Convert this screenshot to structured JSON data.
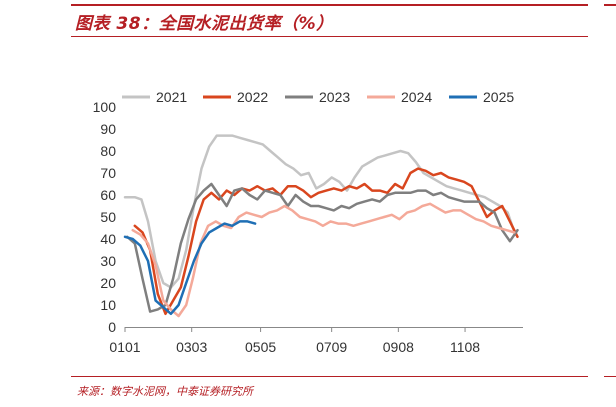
{
  "header": {
    "title": "图表 38：全国水泥出货率（%）"
  },
  "footer": {
    "source": "来源：数字水泥网，中泰证券研究所"
  },
  "colors": {
    "accent": "#b51f24"
  },
  "chart_data": {
    "type": "line",
    "title": "",
    "xlabel": "",
    "ylabel": "",
    "ylim": [
      0,
      100
    ],
    "yticks": [
      0,
      10,
      20,
      30,
      40,
      50,
      60,
      70,
      80,
      90,
      100
    ],
    "grid": false,
    "legend_position": "top",
    "x_start": "0101",
    "x_end": "1231",
    "x_ticks": [
      "0101",
      "0303",
      "0505",
      "0709",
      "0908",
      "1108"
    ],
    "series": [
      {
        "name": "2021",
        "color": "#c4c4c4",
        "points": [
          [
            "0101",
            59
          ],
          [
            "0110",
            59
          ],
          [
            "0116",
            58
          ],
          [
            "0122",
            48
          ],
          [
            "0129",
            30
          ],
          [
            "0205",
            20
          ],
          [
            "0212",
            18
          ],
          [
            "0219",
            22
          ],
          [
            "0226",
            35
          ],
          [
            "0305",
            55
          ],
          [
            "0312",
            72
          ],
          [
            "0319",
            82
          ],
          [
            "0326",
            87
          ],
          [
            "0402",
            87
          ],
          [
            "0409",
            87
          ],
          [
            "0416",
            86
          ],
          [
            "0423",
            85
          ],
          [
            "0430",
            84
          ],
          [
            "0507",
            83
          ],
          [
            "0514",
            80
          ],
          [
            "0521",
            77
          ],
          [
            "0528",
            74
          ],
          [
            "0604",
            72
          ],
          [
            "0611",
            69
          ],
          [
            "0618",
            70
          ],
          [
            "0625",
            63
          ],
          [
            "0702",
            65
          ],
          [
            "0709",
            68
          ],
          [
            "0716",
            66
          ],
          [
            "0723",
            62
          ],
          [
            "0730",
            68
          ],
          [
            "0806",
            73
          ],
          [
            "0813",
            75
          ],
          [
            "0820",
            77
          ],
          [
            "0827",
            78
          ],
          [
            "0903",
            79
          ],
          [
            "0910",
            80
          ],
          [
            "0917",
            79
          ],
          [
            "0924",
            75
          ],
          [
            "1001",
            70
          ],
          [
            "1008",
            68
          ],
          [
            "1015",
            66
          ],
          [
            "1022",
            64
          ],
          [
            "1029",
            63
          ],
          [
            "1105",
            62
          ],
          [
            "1112",
            61
          ],
          [
            "1119",
            60
          ],
          [
            "1126",
            59
          ],
          [
            "1203",
            57
          ],
          [
            "1210",
            55
          ],
          [
            "1217",
            52
          ],
          [
            "1224",
            42
          ]
        ]
      },
      {
        "name": "2022",
        "color": "#d9461e",
        "points": [
          [
            "0110",
            46
          ],
          [
            "0117",
            43
          ],
          [
            "0124",
            35
          ],
          [
            "0131",
            15
          ],
          [
            "0207",
            6
          ],
          [
            "0214",
            12
          ],
          [
            "0221",
            18
          ],
          [
            "0228",
            32
          ],
          [
            "0307",
            48
          ],
          [
            "0314",
            58
          ],
          [
            "0321",
            61
          ],
          [
            "0328",
            58
          ],
          [
            "0404",
            62
          ],
          [
            "0411",
            60
          ],
          [
            "0418",
            63
          ],
          [
            "0425",
            62
          ],
          [
            "0502",
            64
          ],
          [
            "0509",
            62
          ],
          [
            "0516",
            63
          ],
          [
            "0523",
            60
          ],
          [
            "0530",
            64
          ],
          [
            "0606",
            64
          ],
          [
            "0613",
            62
          ],
          [
            "0620",
            59
          ],
          [
            "0627",
            61
          ],
          [
            "0704",
            62
          ],
          [
            "0711",
            63
          ],
          [
            "0718",
            62
          ],
          [
            "0725",
            64
          ],
          [
            "0801",
            63
          ],
          [
            "0808",
            65
          ],
          [
            "0815",
            62
          ],
          [
            "0822",
            62
          ],
          [
            "0829",
            61
          ],
          [
            "0905",
            65
          ],
          [
            "0912",
            63
          ],
          [
            "0919",
            70
          ],
          [
            "0926",
            72
          ],
          [
            "1003",
            71
          ],
          [
            "1010",
            69
          ],
          [
            "1017",
            70
          ],
          [
            "1024",
            68
          ],
          [
            "1031",
            67
          ],
          [
            "1107",
            66
          ],
          [
            "1114",
            64
          ],
          [
            "1121",
            57
          ],
          [
            "1128",
            50
          ],
          [
            "1205",
            53
          ],
          [
            "1212",
            55
          ],
          [
            "1219",
            48
          ],
          [
            "1226",
            41
          ]
        ]
      },
      {
        "name": "2023",
        "color": "#7f7f7f",
        "points": [
          [
            "0103",
            41
          ],
          [
            "0110",
            38
          ],
          [
            "0117",
            22
          ],
          [
            "0124",
            7
          ],
          [
            "0131",
            8
          ],
          [
            "0207",
            10
          ],
          [
            "0214",
            22
          ],
          [
            "0221",
            38
          ],
          [
            "0228",
            49
          ],
          [
            "0307",
            58
          ],
          [
            "0314",
            62
          ],
          [
            "0321",
            65
          ],
          [
            "0328",
            60
          ],
          [
            "0404",
            55
          ],
          [
            "0411",
            62
          ],
          [
            "0418",
            63
          ],
          [
            "0425",
            60
          ],
          [
            "0502",
            58
          ],
          [
            "0509",
            62
          ],
          [
            "0516",
            61
          ],
          [
            "0523",
            60
          ],
          [
            "0530",
            55
          ],
          [
            "0606",
            60
          ],
          [
            "0613",
            57
          ],
          [
            "0620",
            55
          ],
          [
            "0627",
            55
          ],
          [
            "0704",
            54
          ],
          [
            "0711",
            53
          ],
          [
            "0718",
            55
          ],
          [
            "0725",
            54
          ],
          [
            "0801",
            56
          ],
          [
            "0808",
            57
          ],
          [
            "0815",
            58
          ],
          [
            "0822",
            57
          ],
          [
            "0829",
            60
          ],
          [
            "0905",
            61
          ],
          [
            "0912",
            61
          ],
          [
            "0919",
            61
          ],
          [
            "0926",
            62
          ],
          [
            "1003",
            62
          ],
          [
            "1010",
            60
          ],
          [
            "1017",
            61
          ],
          [
            "1024",
            59
          ],
          [
            "1031",
            58
          ],
          [
            "1107",
            57
          ],
          [
            "1114",
            57
          ],
          [
            "1121",
            57
          ],
          [
            "1128",
            54
          ],
          [
            "1205",
            52
          ],
          [
            "1212",
            44
          ],
          [
            "1219",
            39
          ],
          [
            "1226",
            44
          ]
        ]
      },
      {
        "name": "2024",
        "color": "#f4a999",
        "points": [
          [
            "0108",
            44
          ],
          [
            "0115",
            42
          ],
          [
            "0122",
            38
          ],
          [
            "0129",
            28
          ],
          [
            "0205",
            12
          ],
          [
            "0212",
            8
          ],
          [
            "0219",
            5
          ],
          [
            "0226",
            10
          ],
          [
            "0304",
            22
          ],
          [
            "0311",
            38
          ],
          [
            "0318",
            46
          ],
          [
            "0325",
            48
          ],
          [
            "0401",
            46
          ],
          [
            "0408",
            45
          ],
          [
            "0415",
            50
          ],
          [
            "0422",
            52
          ],
          [
            "0429",
            51
          ],
          [
            "0506",
            50
          ],
          [
            "0513",
            52
          ],
          [
            "0520",
            53
          ],
          [
            "0527",
            55
          ],
          [
            "0603",
            53
          ],
          [
            "0610",
            50
          ],
          [
            "0617",
            49
          ],
          [
            "0624",
            48
          ],
          [
            "0701",
            46
          ],
          [
            "0708",
            48
          ],
          [
            "0715",
            47
          ],
          [
            "0722",
            47
          ],
          [
            "0729",
            46
          ],
          [
            "0805",
            47
          ],
          [
            "0812",
            48
          ],
          [
            "0819",
            49
          ],
          [
            "0826",
            50
          ],
          [
            "0902",
            51
          ],
          [
            "0909",
            49
          ],
          [
            "0916",
            52
          ],
          [
            "0923",
            53
          ],
          [
            "0930",
            55
          ],
          [
            "1007",
            56
          ],
          [
            "1014",
            54
          ],
          [
            "1021",
            52
          ],
          [
            "1028",
            53
          ],
          [
            "1104",
            53
          ],
          [
            "1111",
            51
          ],
          [
            "1118",
            49
          ],
          [
            "1125",
            48
          ],
          [
            "1202",
            46
          ],
          [
            "1209",
            45
          ],
          [
            "1216",
            44
          ],
          [
            "1223",
            43
          ]
        ]
      },
      {
        "name": "2025",
        "color": "#1f6fb5",
        "points": [
          [
            "0101",
            41
          ],
          [
            "0108",
            40
          ],
          [
            "0115",
            37
          ],
          [
            "0122",
            30
          ],
          [
            "0129",
            12
          ],
          [
            "0205",
            9
          ],
          [
            "0212",
            6
          ],
          [
            "0219",
            10
          ],
          [
            "0226",
            20
          ],
          [
            "0305",
            30
          ],
          [
            "0312",
            38
          ],
          [
            "0319",
            43
          ],
          [
            "0326",
            45
          ],
          [
            "0402",
            47
          ],
          [
            "0409",
            46
          ],
          [
            "0416",
            48
          ],
          [
            "0423",
            48
          ],
          [
            "0430",
            47
          ]
        ]
      }
    ]
  }
}
